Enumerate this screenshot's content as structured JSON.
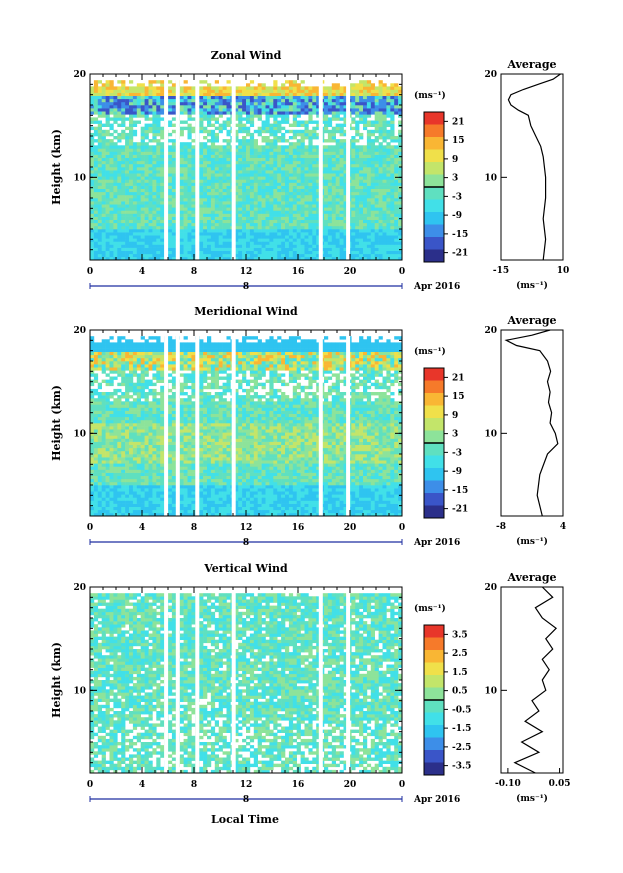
{
  "figure": {
    "xlabel": "Local Time",
    "date_label": "Apr 2016",
    "day_label": "8"
  },
  "colors": {
    "colorbar": [
      "#2b2f8a",
      "#3a55c8",
      "#3d8ee8",
      "#2fc4f0",
      "#41e0e8",
      "#5fe0c0",
      "#8de39a",
      "#c3e56a",
      "#f0e04a",
      "#f9b634",
      "#f67a2a",
      "#e8362a"
    ],
    "field_main": "#6fe3c8",
    "field_high": "#3a55c8"
  },
  "chart_data": [
    {
      "type": "heatmap",
      "title": "Zonal Wind",
      "xlabel": "",
      "ylabel": "Height (km)",
      "xlim": [
        0,
        24
      ],
      "xticks": [
        "0",
        "4",
        "8",
        "12",
        "16",
        "20",
        "0"
      ],
      "ylim": [
        2,
        20
      ],
      "yticks": [
        "20",
        "10"
      ],
      "colorbar_unit": "(ms⁻¹)",
      "colorbar_ticks": [
        "21",
        "15",
        "9",
        "3",
        "-3",
        "-9",
        "-15",
        "-21"
      ],
      "colorbar_range": [
        -24,
        24
      ],
      "data_gaps_hours": [
        5.7,
        6.6,
        8.1,
        10.9,
        17.6,
        19.7
      ],
      "average_profile": {
        "title": "Average",
        "xlabel": "(ms⁻¹)",
        "xticks": [
          "-15",
          "10"
        ],
        "xlim": [
          -15,
          10
        ],
        "yticks": [
          "20",
          "10"
        ],
        "height_km": [
          2,
          4,
          6,
          8,
          10,
          12,
          13,
          14,
          15,
          16,
          16.5,
          17,
          17.5,
          18,
          18.5,
          19,
          19.5,
          20
        ],
        "value": [
          2,
          3,
          2,
          3,
          3,
          2,
          1,
          -1,
          -3,
          -4,
          -8,
          -11,
          -12,
          -11,
          -6,
          0,
          6,
          9
        ]
      }
    },
    {
      "type": "heatmap",
      "title": "Meridional Wind",
      "xlabel": "",
      "ylabel": "Height (km)",
      "xlim": [
        0,
        24
      ],
      "xticks": [
        "0",
        "4",
        "8",
        "12",
        "16",
        "20",
        "0"
      ],
      "ylim": [
        2,
        20
      ],
      "yticks": [
        "20",
        "10"
      ],
      "colorbar_unit": "(ms⁻¹)",
      "colorbar_ticks": [
        "21",
        "15",
        "9",
        "3",
        "-3",
        "-9",
        "-15",
        "-21"
      ],
      "colorbar_range": [
        -24,
        24
      ],
      "data_gaps_hours": [
        5.7,
        6.6,
        8.1,
        10.9,
        17.6,
        19.7
      ],
      "average_profile": {
        "title": "Average",
        "xlabel": "(ms⁻¹)",
        "xticks": [
          "-8",
          "4"
        ],
        "xlim": [
          -8,
          4
        ],
        "yticks": [
          "20",
          "10"
        ],
        "height_km": [
          2,
          4,
          6,
          8,
          9,
          10,
          11,
          12,
          13,
          14,
          15,
          16,
          17,
          18,
          18.5,
          19,
          19.5,
          20
        ],
        "value": [
          0,
          -1,
          -0.5,
          1,
          3,
          2.5,
          1.5,
          1.8,
          1.2,
          1.5,
          1,
          1.6,
          1,
          -0.5,
          -5,
          -7,
          -2,
          1.5
        ]
      }
    },
    {
      "type": "heatmap",
      "title": "Vertical Wind",
      "xlabel": "Local Time",
      "ylabel": "Height (km)",
      "xlim": [
        0,
        24
      ],
      "xticks": [
        "0",
        "4",
        "8",
        "12",
        "16",
        "20",
        "0"
      ],
      "ylim": [
        2,
        20
      ],
      "yticks": [
        "20",
        "10"
      ],
      "colorbar_unit": "(ms⁻¹)",
      "colorbar_ticks": [
        "3.5",
        "2.5",
        "1.5",
        "0.5",
        "-0.5",
        "-1.5",
        "-2.5",
        "-3.5"
      ],
      "colorbar_range": [
        -4,
        4
      ],
      "data_gaps_hours": [
        5.7,
        6.6,
        8.1,
        10.9,
        17.6,
        19.7
      ],
      "average_profile": {
        "title": "Average",
        "xlabel": "(ms⁻¹)",
        "xticks": [
          "-0.10",
          "0.05"
        ],
        "xlim": [
          -0.12,
          0.06
        ],
        "yticks": [
          "20",
          "10"
        ],
        "height_km": [
          2,
          3,
          4,
          5,
          6,
          7,
          8,
          9,
          10,
          11,
          12,
          13,
          14,
          15,
          16,
          17,
          18,
          19,
          20
        ],
        "value": [
          -0.02,
          -0.08,
          -0.01,
          -0.06,
          0.0,
          -0.05,
          -0.01,
          -0.03,
          0.01,
          0.0,
          0.02,
          0.0,
          0.03,
          0.01,
          0.04,
          0.0,
          -0.02,
          0.03,
          0.0
        ]
      }
    }
  ]
}
